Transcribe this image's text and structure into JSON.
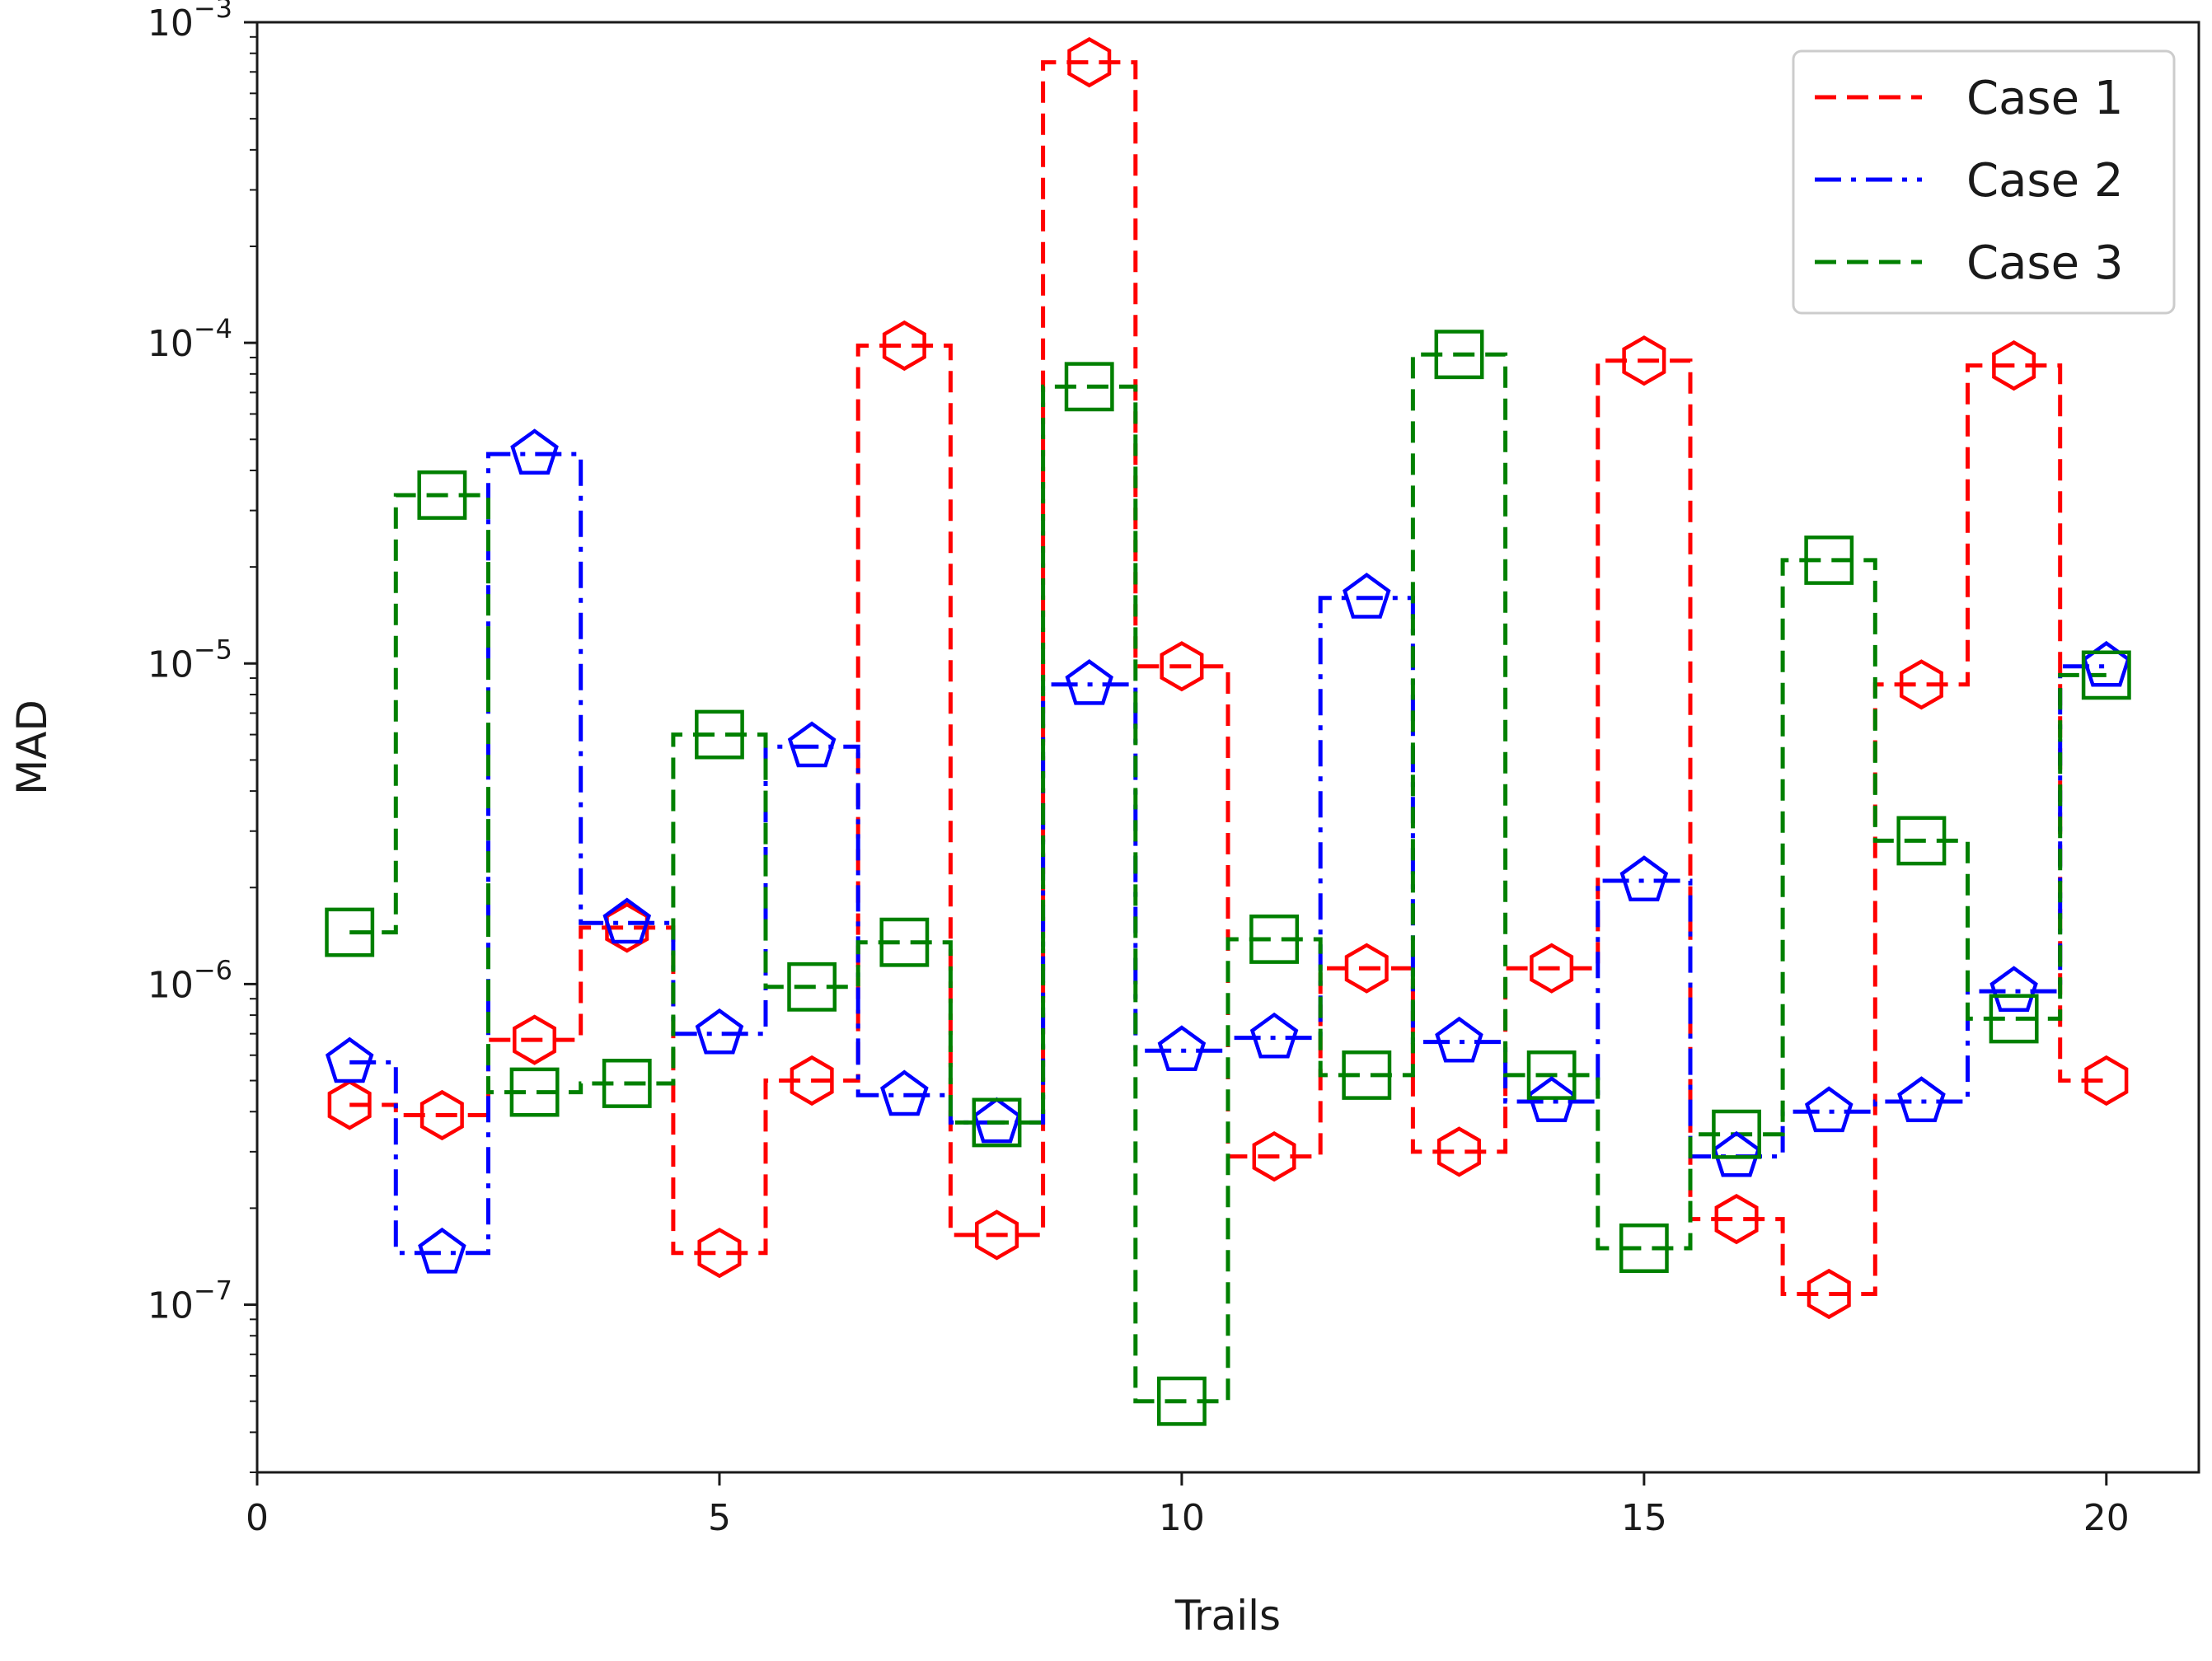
{
  "chart_data": {
    "type": "line",
    "drawstyle": "steps-mid",
    "xlabel": "Trails",
    "ylabel": "MAD",
    "xlim": [
      0,
      21
    ],
    "ylim": [
      3e-08,
      0.001
    ],
    "yscale": "log",
    "grid": false,
    "legend_position": "top-right",
    "x_ticks": [
      {
        "value": 0,
        "label": "0"
      },
      {
        "value": 5,
        "label": "5"
      },
      {
        "value": 10,
        "label": "10"
      },
      {
        "value": 15,
        "label": "15"
      },
      {
        "value": 20,
        "label": "20"
      }
    ],
    "y_ticks": [
      {
        "value": 1e-07,
        "base": "10",
        "exp": "−7"
      },
      {
        "value": 1e-06,
        "base": "10",
        "exp": "−6"
      },
      {
        "value": 1e-05,
        "base": "10",
        "exp": "−5"
      },
      {
        "value": 0.0001,
        "base": "10",
        "exp": "−4"
      },
      {
        "value": 0.001,
        "base": "10",
        "exp": "−3"
      }
    ],
    "x": [
      1,
      2,
      3,
      4,
      5,
      6,
      7,
      8,
      9,
      10,
      11,
      12,
      13,
      14,
      15,
      16,
      17,
      18,
      19,
      20
    ],
    "series": [
      {
        "name": "Case 1",
        "color": "#ff0000",
        "linestyle": "dashed",
        "marker": "hexagon",
        "values": [
          4.2e-07,
          3.9e-07,
          6.7e-07,
          1.5e-06,
          1.45e-07,
          5e-07,
          9.8e-05,
          1.65e-07,
          0.00075,
          9.8e-06,
          2.9e-07,
          1.12e-06,
          3e-07,
          1.12e-06,
          8.8e-05,
          1.85e-07,
          1.08e-07,
          8.6e-06,
          8.5e-05,
          5e-07
        ]
      },
      {
        "name": "Case 2",
        "color": "#0000ff",
        "linestyle": "dashdot",
        "marker": "pentagon",
        "values": [
          5.7e-07,
          1.45e-07,
          4.5e-05,
          1.55e-06,
          7e-07,
          5.5e-06,
          4.5e-07,
          3.7e-07,
          8.6e-06,
          6.2e-07,
          6.8e-07,
          1.6e-05,
          6.6e-07,
          4.3e-07,
          2.1e-06,
          2.9e-07,
          4e-07,
          4.3e-07,
          9.5e-07,
          9.8e-06
        ]
      },
      {
        "name": "Case 3",
        "color": "#008000",
        "linestyle": "dashed",
        "marker": "square",
        "values": [
          1.45e-06,
          3.35e-05,
          4.6e-07,
          4.9e-07,
          6e-06,
          9.8e-07,
          1.35e-06,
          3.7e-07,
          7.3e-05,
          5e-08,
          1.38e-06,
          5.2e-07,
          9.2e-05,
          5.2e-07,
          1.5e-07,
          3.4e-07,
          2.1e-05,
          2.8e-06,
          7.8e-07,
          9.2e-06
        ]
      }
    ]
  }
}
